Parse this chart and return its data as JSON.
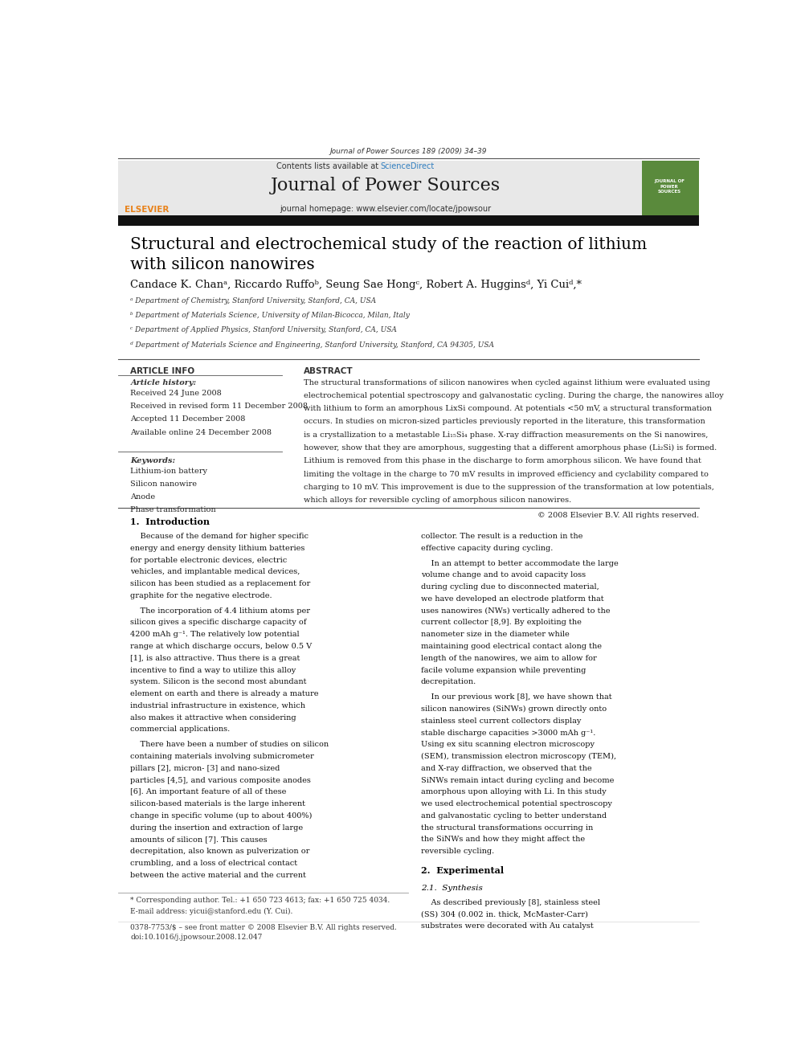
{
  "page_width": 9.92,
  "page_height": 13.23,
  "bg_color": "#ffffff",
  "header_journal_ref": "Journal of Power Sources 189 (2009) 34–39",
  "journal_name": "Journal of Power Sources",
  "journal_homepage": "journal homepage: www.elsevier.com/locate/jpowsour",
  "contents_list": "Contents lists available at ScienceDirect",
  "header_bg": "#e8e8e8",
  "header_green_bg": "#5a8a3c",
  "paper_title": "Structural and electrochemical study of the reaction of lithium\nwith silicon nanowires",
  "authors": "Candace K. Chanᵃ, Riccardo Ruffoᵇ, Seung Sae Hongᶜ, Robert A. Hugginsᵈ, Yi Cuiᵈ,*",
  "affil_a": "ᵃ Department of Chemistry, Stanford University, Stanford, CA, USA",
  "affil_b": "ᵇ Department of Materials Science, University of Milan-Bicocca, Milan, Italy",
  "affil_c": "ᶜ Department of Applied Physics, Stanford University, Stanford, CA, USA",
  "affil_d": "ᵈ Department of Materials Science and Engineering, Stanford University, Stanford, CA 94305, USA",
  "article_info_title": "ARTICLE INFO",
  "abstract_title": "ABSTRACT",
  "article_history_label": "Article history:",
  "received": "Received 24 June 2008",
  "received_revised": "Received in revised form 11 December 2008",
  "accepted": "Accepted 11 December 2008",
  "available_online": "Available online 24 December 2008",
  "keywords_label": "Keywords:",
  "keyword1": "Lithium-ion battery",
  "keyword2": "Silicon nanowire",
  "keyword3": "Anode",
  "keyword4": "Phase transformation",
  "abstract_copyright": "© 2008 Elsevier B.V. All rights reserved.",
  "section1_title": "1.  Introduction",
  "section1_col1_p1": "Because of the demand for higher specific energy and energy density lithium batteries for portable electronic devices, electric vehicles, and implantable medical devices, silicon has been studied as a replacement for graphite for the negative electrode.",
  "section1_col1_p2": "The incorporation of 4.4 lithium atoms per silicon gives a specific discharge capacity of 4200 mAh g⁻¹. The relatively low potential range at which discharge occurs, below 0.5 V [1], is also attractive. Thus there is a great incentive to find a way to utilize this alloy system. Silicon is the second most abundant element on earth and there is already a mature industrial infrastructure in existence, which also makes it attractive when considering commercial applications.",
  "section1_col1_p3": "There have been a number of studies on silicon containing materials involving submicrometer pillars [2], micron- [3] and nano-sized particles [4,5], and various composite anodes [6]. An important feature of all of these silicon-based materials is the large inherent change in specific volume (up to about 400%) during the insertion and extraction of large amounts of silicon [7]. This causes decrepitation, also known as pulverization or crumbling, and a loss of electrical contact between the active material and the current",
  "section1_col2_p1": "collector. The result is a reduction in the effective capacity during cycling.",
  "section1_col2_p2": "In an attempt to better accommodate the large volume change and to avoid capacity loss during cycling due to disconnected material, we have developed an electrode platform that uses nanowires (NWs) vertically adhered to the current collector [8,9]. By exploiting the nanometer size in the diameter while maintaining good electrical contact along the length of the nanowires, we aim to allow for facile volume expansion while preventing decrepitation.",
  "section1_col2_p3": "In our previous work [8], we have shown that silicon nanowires (SiNWs) grown directly onto stainless steel current collectors display stable discharge capacities >3000 mAh g⁻¹. Using ex situ scanning electron microscopy (SEM), transmission electron microscopy (TEM), and X-ray diffraction, we observed that the SiNWs remain intact during cycling and become amorphous upon alloying with Li. In this study we used electrochemical potential spectroscopy and galvanostatic cycling to better understand the structural transformations occurring in the SiNWs and how they might affect the reversible cycling.",
  "section2_title": "2.  Experimental",
  "section21_title": "2.1.  Synthesis",
  "section21_text": "As described previously [8], stainless steel (SS) 304 (0.002 in. thick, McMaster-Carr) substrates were decorated with Au catalyst",
  "footnote_star": "* Corresponding author. Tel.: +1 650 723 4613; fax: +1 650 725 4034.",
  "footnote_email": "E-mail address: yicui@stanford.edu (Y. Cui).",
  "footer_issn": "0378-7753/$ – see front matter © 2008 Elsevier B.V. All rights reserved.",
  "footer_doi": "doi:10.1016/j.jpowsour.2008.12.047",
  "link_color": "#2e7dbf",
  "elsevier_orange": "#e8821a"
}
